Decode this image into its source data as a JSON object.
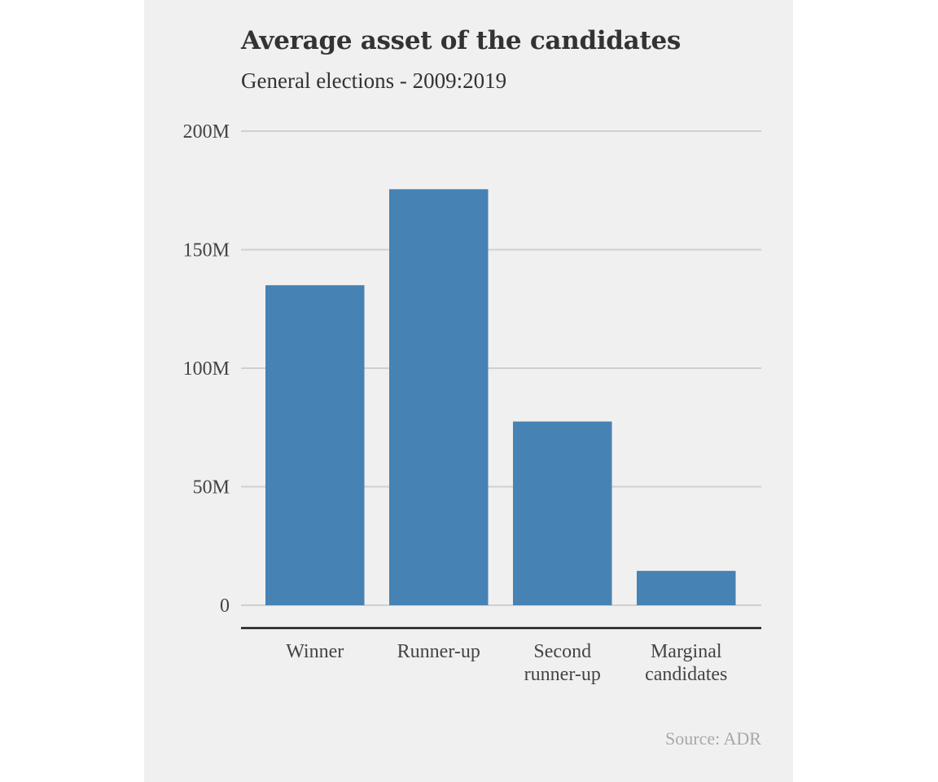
{
  "chart_data": {
    "type": "bar",
    "title": "Average asset of the candidates",
    "subtitle": "General elections - 2009:2019",
    "source": "Source: ADR",
    "categories": [
      [
        "Winner"
      ],
      [
        "Runner-up"
      ],
      [
        "Second",
        "runner-up"
      ],
      [
        "Marginal",
        "candidates"
      ]
    ],
    "values": [
      135000000,
      175500000,
      77500000,
      14500000
    ],
    "ylim": [
      0,
      200000000
    ],
    "yticks": [
      0,
      50000000,
      100000000,
      150000000,
      200000000
    ],
    "ytick_labels": [
      "0",
      "50M",
      "100M",
      "150M",
      "200M"
    ],
    "grid": true,
    "bar_color": "#4682b4",
    "grid_color": "#d0d0d0",
    "axis_color": "#1a1a1a",
    "background_color": "#f0f0f0"
  }
}
